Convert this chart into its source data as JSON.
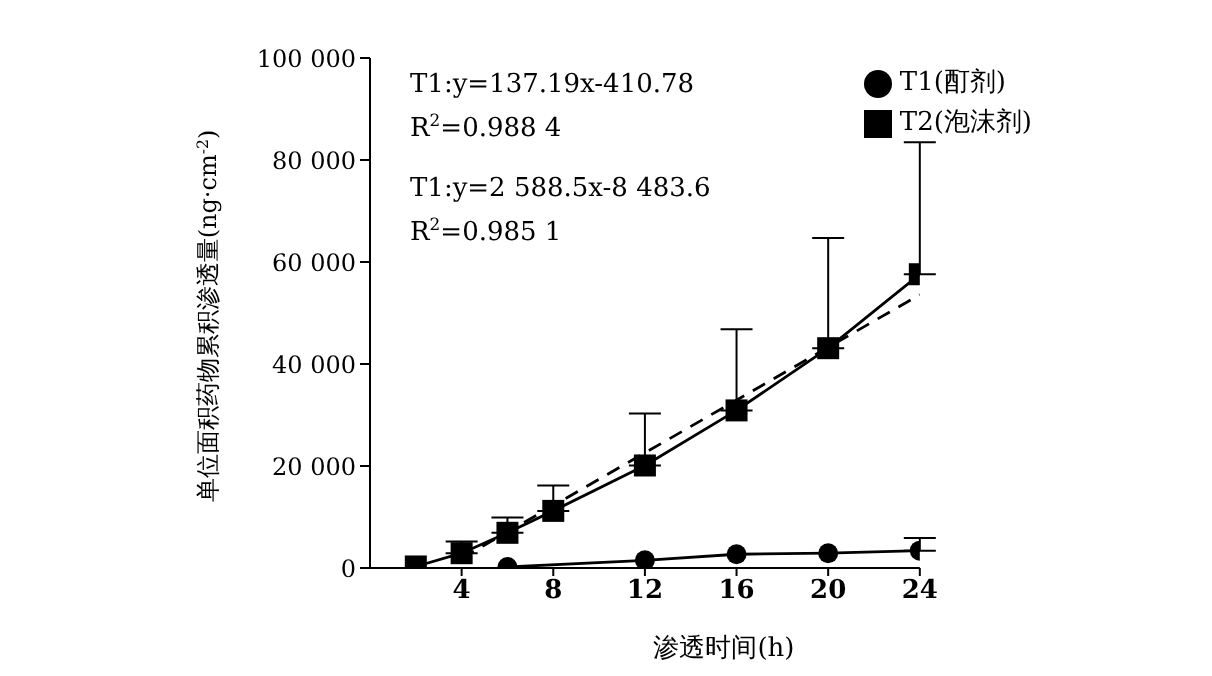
{
  "chart_data": {
    "type": "line",
    "xlabel": "渗透时间(h)",
    "ylabel": "单位面积药物累积渗透量(ng·cm$^{-2}$)",
    "xlim": [
      0,
      24
    ],
    "xticks": [
      4,
      8,
      12,
      16,
      20,
      24
    ],
    "ylim": [
      0,
      100000
    ],
    "yticks": [
      {
        "value": 0,
        "label": "0"
      },
      {
        "value": 20000,
        "label": "20 000"
      },
      {
        "value": 40000,
        "label": "40 000"
      },
      {
        "value": 60000,
        "label": "60 000"
      },
      {
        "value": 80000,
        "label": "80 000"
      },
      {
        "value": 100000,
        "label": "100 000"
      }
    ],
    "legend": "top right",
    "line_style": "solid",
    "annotations": [
      {
        "text": "T1:y=137.19x-410.78"
      },
      {
        "text": "R$^{2}$=0.988 4"
      },
      {
        "text": "T1:y=2 588.5x-8 483.6"
      },
      {
        "text": "R$^{2}$=0.985 1"
      }
    ],
    "series": [
      {
        "name": "T1(酊剂)",
        "color": "#000000",
        "marker": "circle",
        "x": [
          6,
          12,
          16,
          20,
          24
        ],
        "values": [
          200,
          1500,
          2700,
          2900,
          3400
        ],
        "errors": [
          null,
          null,
          null,
          null,
          [
            3400,
            5900
          ]
        ]
      },
      {
        "name": "T2(泡沫剂)",
        "color": "#000000",
        "marker": "square",
        "x": [
          2,
          4,
          6,
          8,
          12,
          16,
          20,
          24
        ],
        "values": [
          300,
          2900,
          6900,
          11200,
          20100,
          30900,
          43100,
          57600
        ],
        "errors": [
          null,
          [
            2900,
            5200
          ],
          [
            6900,
            9900
          ],
          [
            11200,
            16200
          ],
          [
            20100,
            30300
          ],
          [
            30900,
            46800
          ],
          [
            43100,
            64700
          ],
          [
            57600,
            83500
          ]
        ]
      },
      {
        "type": "line",
        "color": "#000000",
        "marker": "none",
        "line_style": "dashed",
        "x": [
          4,
          24
        ],
        "values": [
          1900,
          53600
        ]
      }
    ]
  }
}
